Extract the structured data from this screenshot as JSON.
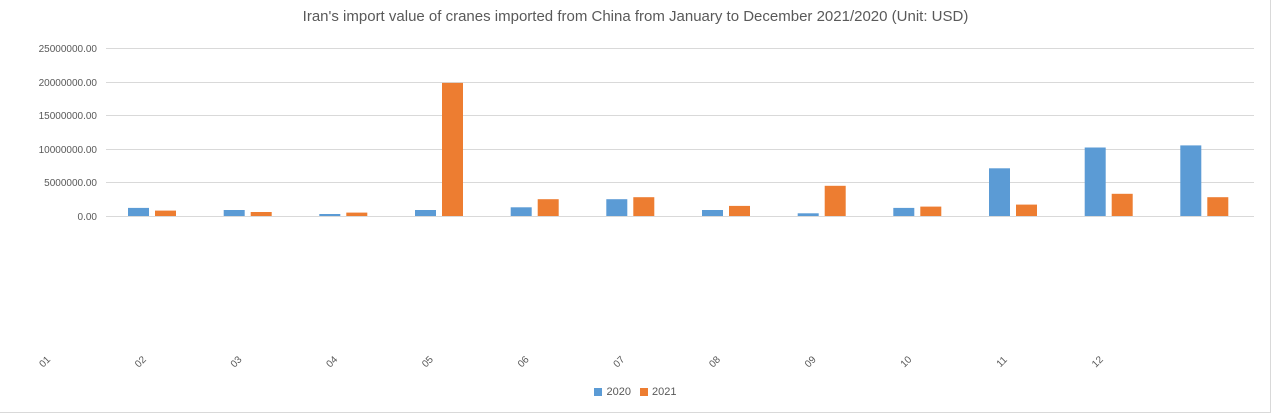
{
  "chart_data": {
    "type": "bar",
    "title": "Iran's import value of cranes imported from China from January to December 2021/2020 (Unit: USD)",
    "xlabel": "",
    "ylabel": "",
    "ylim": [
      0,
      25000000
    ],
    "yticks": [
      0,
      5000000,
      10000000,
      15000000,
      20000000,
      25000000
    ],
    "ytick_labels": [
      "0.00",
      "5000000.00",
      "10000000.00",
      "15000000.00",
      "20000000.00",
      "25000000.00"
    ],
    "categories": [
      "01",
      "02",
      "03",
      "04",
      "05",
      "06",
      "07",
      "08",
      "09",
      "10",
      "11",
      "12"
    ],
    "series": [
      {
        "name": "2020",
        "color": "#5b9bd5",
        "values": [
          1200000,
          900000,
          300000,
          900000,
          1300000,
          2500000,
          900000,
          400000,
          1200000,
          7100000,
          10200000,
          10500000
        ]
      },
      {
        "name": "2021",
        "color": "#ed7d31",
        "values": [
          800000,
          600000,
          500000,
          19800000,
          2500000,
          2800000,
          1500000,
          4500000,
          1400000,
          1700000,
          3300000,
          2800000
        ]
      }
    ],
    "grid": true,
    "legend_position": "bottom"
  }
}
